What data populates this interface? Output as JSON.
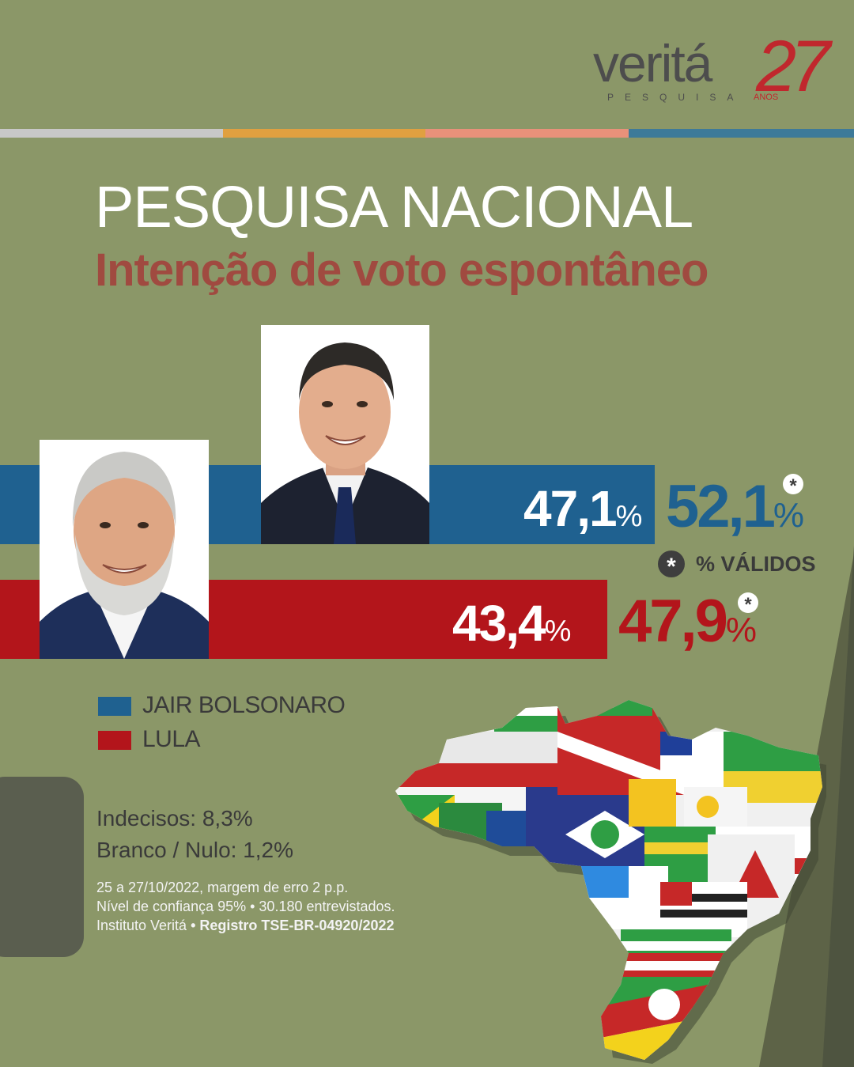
{
  "brand": {
    "name": "veritá",
    "subtitle": "PESQUISA",
    "anniversary_number": "27",
    "anniversary_label": "ANOS"
  },
  "header": {
    "title": "PESQUISA NACIONAL",
    "subtitle": "Intenção de voto espontâneo"
  },
  "colors": {
    "background": "#8b9768",
    "bolsonaro": "#1f6190",
    "lula": "#b3151b",
    "subtitle": "#a04a40",
    "stripes": [
      "#c8c8c8",
      "#e0a040",
      "#e8917a",
      "#3d7a99"
    ]
  },
  "chart_data": {
    "type": "bar",
    "title": "PESQUISA NACIONAL",
    "subtitle": "Intenção de voto espontâneo",
    "categories": [
      "JAIR BOLSONARO",
      "LULA"
    ],
    "series": [
      {
        "name": "",
        "values": [
          47.1,
          43.4
        ],
        "labels": [
          "47,1",
          "43,4"
        ]
      },
      {
        "name": "% VÁLIDOS",
        "values": [
          52.1,
          47.9
        ],
        "labels": [
          "52,1",
          "47,9"
        ]
      }
    ],
    "unit": "%",
    "legend": [
      {
        "label": "JAIR BOLSONARO",
        "color": "#1f6190"
      },
      {
        "label": "LULA",
        "color": "#b3151b"
      }
    ],
    "legend_position": "bottom-left",
    "valid_marker": "*",
    "valid_label": "% VÁLIDOS"
  },
  "stats": {
    "indecisos": "Indecisos: 8,3%",
    "branco_nulo": "Branco / Nulo: 1,2%"
  },
  "notes": {
    "line1": "25 a 27/10/2022, margem de erro 2 p.p.",
    "line2": "Nível de confiança 95% • 30.180 entrevistados.",
    "line3_prefix": "Instituto Veritá",
    "line3_bold": " • Registro TSE-BR-04920/2022"
  },
  "images": {
    "bolsonaro_photo": "portrait-bolsonaro",
    "lula_photo": "portrait-lula",
    "map": "brazil-states-flags-map"
  }
}
